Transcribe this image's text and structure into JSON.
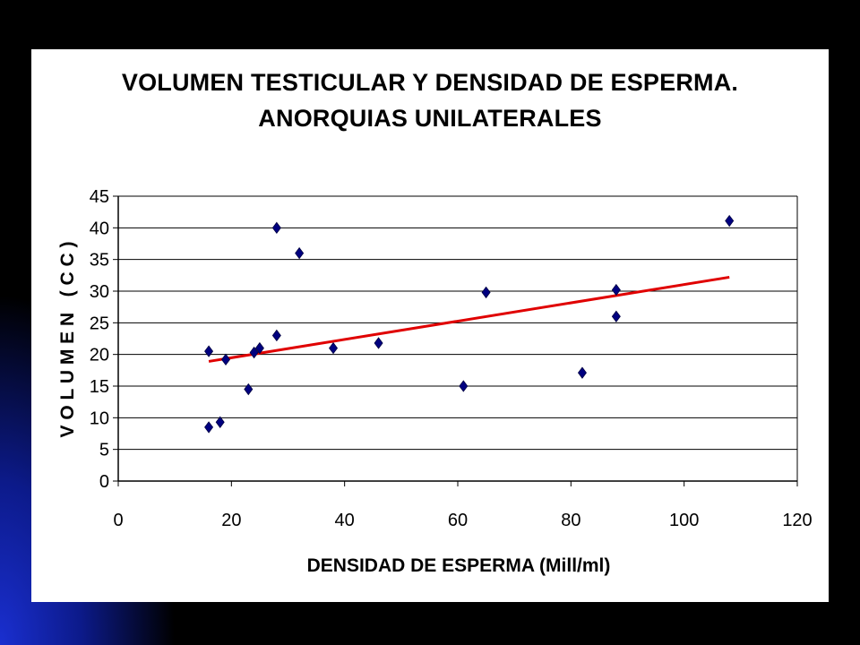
{
  "colors": {
    "background": "#000000",
    "panel": "#ffffff",
    "grid": "#000000",
    "marker": "#000080",
    "trendline": "#e00000"
  },
  "chart_data": {
    "type": "scatter",
    "title_lines": [
      "VOLUMEN TESTICULAR Y DENSIDAD DE ESPERMA.",
      "ANORQUIAS UNILATERALES"
    ],
    "xlabel": "DENSIDAD DE ESPERMA (Mill/ml)",
    "ylabel": "V O L U M E N   ( C C )",
    "xlim": [
      0,
      120
    ],
    "ylim": [
      0,
      45
    ],
    "xticks": [
      0,
      20,
      40,
      60,
      80,
      100,
      120
    ],
    "yticks": [
      0,
      5,
      10,
      15,
      20,
      25,
      30,
      35,
      40,
      45
    ],
    "grid": "horizontal",
    "marker": "diamond",
    "points": [
      {
        "x": 16,
        "y": 20.5
      },
      {
        "x": 16,
        "y": 8.5
      },
      {
        "x": 18,
        "y": 9.3
      },
      {
        "x": 19,
        "y": 19.2
      },
      {
        "x": 23,
        "y": 14.5
      },
      {
        "x": 24,
        "y": 20.3
      },
      {
        "x": 25,
        "y": 21
      },
      {
        "x": 28,
        "y": 23
      },
      {
        "x": 28,
        "y": 40
      },
      {
        "x": 32,
        "y": 36
      },
      {
        "x": 38,
        "y": 21
      },
      {
        "x": 46,
        "y": 21.8
      },
      {
        "x": 61,
        "y": 15
      },
      {
        "x": 65,
        "y": 29.8
      },
      {
        "x": 82,
        "y": 17.1
      },
      {
        "x": 88,
        "y": 30.2
      },
      {
        "x": 88,
        "y": 26
      },
      {
        "x": 108,
        "y": 41.1
      }
    ],
    "trendline": {
      "x": [
        16,
        108
      ],
      "y": [
        18.9,
        32.2
      ]
    }
  }
}
